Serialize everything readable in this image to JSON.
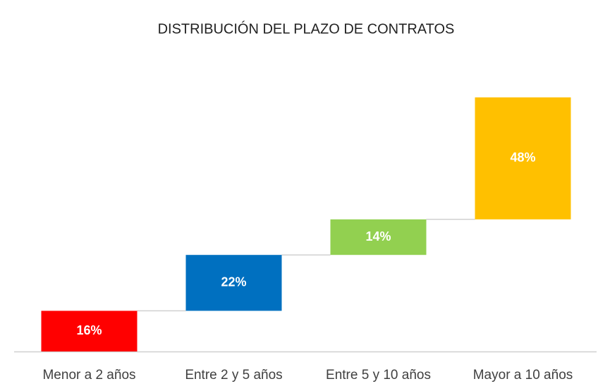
{
  "chart_data": {
    "type": "waterfall",
    "title": "DISTRIBUCIÓN DEL PLAZO DE CONTRATOS",
    "categories": [
      "Menor a 2 años",
      "Entre 2 y 5 años",
      "Entre 5 y 10 años",
      "Mayor a 10 años"
    ],
    "values": [
      16,
      22,
      14,
      48
    ],
    "value_labels": [
      "16%",
      "22%",
      "14%",
      "48%"
    ],
    "colors": [
      "#ff0000",
      "#0070c0",
      "#92d050",
      "#ffc000"
    ]
  }
}
